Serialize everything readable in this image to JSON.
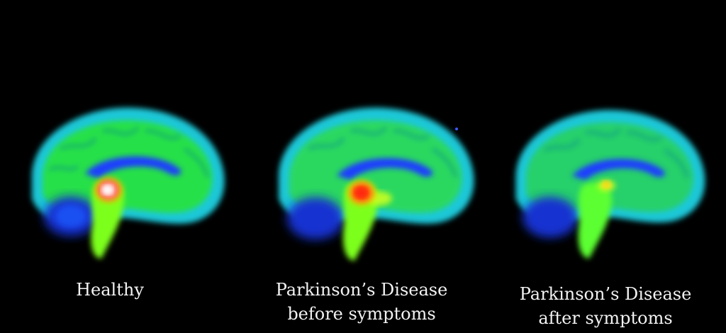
{
  "panels": [
    {
      "caption_lines": [
        "Healthy"
      ],
      "state": "healthy",
      "dopamine_hotspot_color": "#ffffff"
    },
    {
      "caption_lines": [
        "Parkinson’s Disease",
        "before symptoms"
      ],
      "state": "before-symptoms",
      "dopamine_hotspot_color": "#ff2a10"
    },
    {
      "caption_lines": [
        "Parkinson’s Disease",
        "after symptoms"
      ],
      "state": "after-symptoms",
      "dopamine_hotspot_color": "#ffd21a"
    }
  ],
  "colors": {
    "background": "#000000",
    "cortex_outer": "#1ec8d8",
    "cortex_inner": "#27e04a",
    "ventricle": "#1a3cff",
    "brainstem": "#7dff1e",
    "caption_text": "#f2f2f2"
  },
  "icons": [
    "brain-scan-icon"
  ]
}
